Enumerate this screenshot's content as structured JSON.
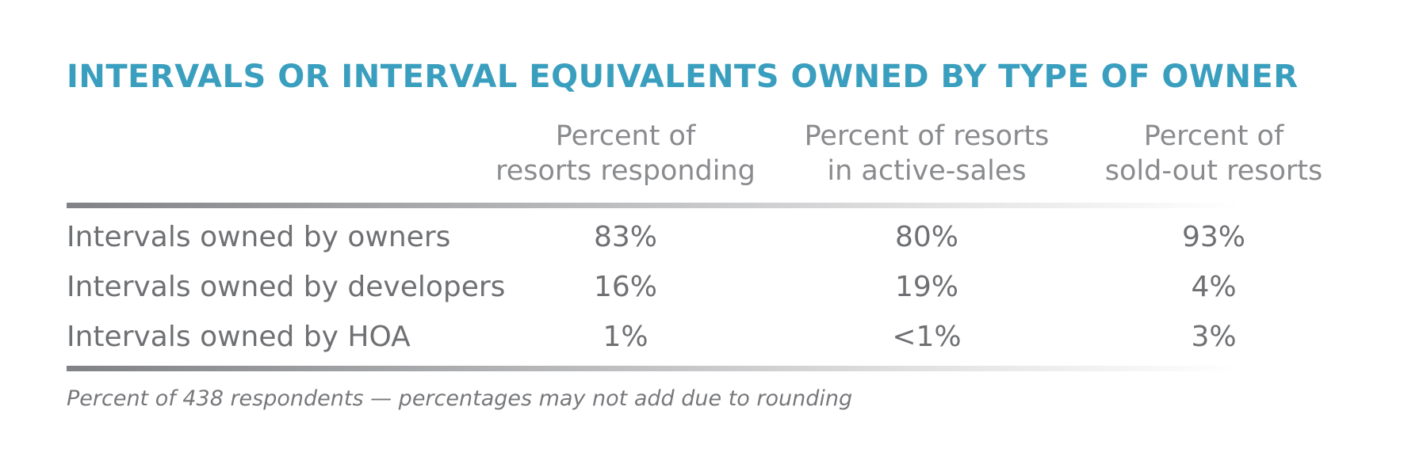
{
  "title": "INTERVALS OR INTERVAL EQUIVALENTS OWNED BY TYPE OF OWNER",
  "table": {
    "header": [
      [
        "Percent of",
        "resorts responding"
      ],
      [
        "Percent of resorts",
        "in active-sales"
      ],
      [
        "Percent of",
        "sold-out resorts"
      ]
    ],
    "rows": [
      [
        "Intervals owned by owners",
        "83%",
        "80%",
        "93%"
      ],
      [
        "Intervals owned by developers",
        "16%",
        "19%",
        "4%"
      ],
      [
        "Intervals owned by HOA",
        "1%",
        "<1%",
        "3%"
      ]
    ]
  },
  "footnote": "Percent of 438 respondents — percentages may not add due to rounding"
}
